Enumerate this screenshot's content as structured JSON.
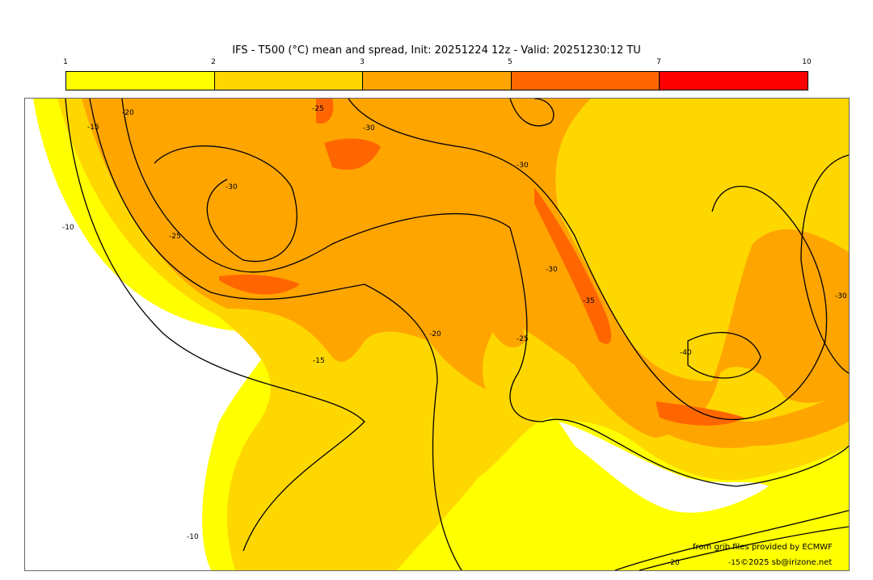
{
  "title": "IFS - T500 (°C) mean and spread, Init: 20251224 12z - Valid: 20251230:12 TU",
  "colorbar": {
    "ticks": [
      "1",
      "2",
      "3",
      "5",
      "7",
      "10"
    ],
    "colors": [
      "#FFFF00",
      "#FFD700",
      "#FFA500",
      "#FF6600",
      "#FF0000"
    ]
  },
  "contour_labels": [
    "-15",
    "-20",
    "-30",
    "-25",
    "-10",
    "-25",
    "-30",
    "-30",
    "-30",
    "-35",
    "-25",
    "-20",
    "-15",
    "-40",
    "-30",
    "-10",
    "-20",
    "-15"
  ],
  "credits": {
    "source": "from grib files provided by ECMWF",
    "copyright": "©2025 sb@irizone.net"
  }
}
